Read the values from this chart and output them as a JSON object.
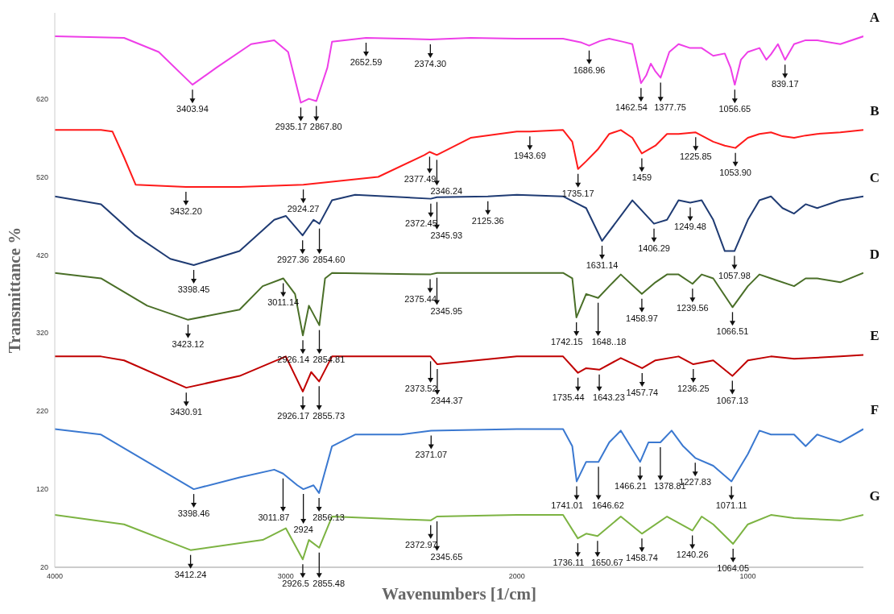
{
  "chart_data": {
    "type": "line",
    "xlabel": "Wavenumbers [1/cm]",
    "ylabel": "Transmittance %",
    "xlim": [
      4000,
      500
    ],
    "xticks": [
      4000,
      3000,
      2000,
      1000
    ],
    "ylim": [
      20,
      730
    ],
    "yticks": [
      20,
      120,
      220,
      320,
      420,
      520,
      620
    ],
    "grid": false,
    "marker": "none",
    "line_style": "solid",
    "series": [
      {
        "name": "A",
        "color": "#ee3ee8",
        "x": [
          4000,
          3700,
          3550,
          3403.94,
          3300,
          3150,
          3050,
          2990,
          2935.17,
          2900,
          2867.8,
          2820,
          2800,
          2652.59,
          2500,
          2374.3,
          2200,
          2000,
          1800,
          1720,
          1686.96,
          1640,
          1600,
          1540,
          1500,
          1462.54,
          1440,
          1420,
          1400,
          1377.75,
          1340,
          1300,
          1250,
          1200,
          1150,
          1100,
          1075,
          1056.65,
          1030,
          1000,
          950,
          920,
          900,
          870,
          839.17,
          800,
          750,
          700,
          600,
          500
        ],
        "values": [
          700,
          698,
          680,
          638,
          660,
          690,
          695,
          680,
          615,
          620,
          617,
          660,
          693,
          698,
          697,
          696,
          698,
          697,
          697,
          692,
          688,
          694,
          697,
          693,
          690,
          640,
          650,
          665,
          655,
          647,
          680,
          690,
          685,
          685,
          675,
          678,
          660,
          638,
          670,
          680,
          685,
          670,
          677,
          690,
          670,
          690,
          695,
          695,
          690,
          700
        ]
      },
      {
        "name": "B",
        "color": "#ff1a1a",
        "x": [
          4000,
          3800,
          3750,
          3700,
          3650,
          3432.2,
          3200,
          2924.27,
          2600,
          2400,
          2377.49,
          2346.24,
          2200,
          2000,
          1943.69,
          1800,
          1760,
          1735.17,
          1700,
          1650,
          1600,
          1550,
          1500,
          1459,
          1400,
          1350,
          1300,
          1225.85,
          1150,
          1100,
          1053.9,
          1000,
          950,
          900,
          850,
          800,
          750,
          700,
          600,
          500
        ],
        "values": [
          580,
          580,
          578,
          545,
          510,
          507,
          507,
          510,
          520,
          548,
          552,
          548,
          570,
          578,
          578,
          580,
          565,
          530,
          540,
          555,
          575,
          580,
          570,
          550,
          560,
          575,
          575,
          577,
          565,
          560,
          557,
          570,
          575,
          577,
          572,
          570,
          573,
          575,
          577,
          580
        ]
      },
      {
        "name": "C",
        "color": "#1f3b73",
        "x": [
          4000,
          3800,
          3650,
          3500,
          3398.45,
          3200,
          3050,
          3000,
          2927.36,
          2880,
          2854.6,
          2800,
          2700,
          2372.45,
          2345.93,
          2125.36,
          2000,
          1800,
          1700,
          1631.14,
          1550,
          1500,
          1406.29,
          1350,
          1300,
          1249.48,
          1200,
          1150,
          1100,
          1057.98,
          1000,
          950,
          900,
          850,
          800,
          750,
          700,
          600,
          500
        ],
        "values": [
          495,
          485,
          445,
          415,
          407,
          425,
          465,
          470,
          445,
          465,
          460,
          490,
          497,
          492,
          494,
          495,
          497,
          495,
          480,
          438,
          470,
          490,
          460,
          465,
          490,
          487,
          490,
          465,
          425,
          425,
          465,
          490,
          495,
          480,
          473,
          485,
          480,
          490,
          495
        ]
      },
      {
        "name": "D",
        "color": "#4a6f28",
        "x": [
          4000,
          3800,
          3600,
          3423.12,
          3200,
          3100,
          3011.14,
          2960,
          2926.14,
          2900,
          2854.81,
          2830,
          2800,
          2375.44,
          2345.95,
          2000,
          1800,
          1760,
          1742.15,
          1700,
          1648.18,
          1600,
          1550,
          1458.97,
          1400,
          1350,
          1300,
          1239.56,
          1200,
          1150,
          1066.51,
          1000,
          950,
          900,
          800,
          750,
          700,
          600,
          500
        ],
        "values": [
          397,
          390,
          355,
          337,
          350,
          380,
          390,
          370,
          317,
          355,
          330,
          390,
          397,
          395,
          397,
          397,
          397,
          390,
          340,
          370,
          365,
          380,
          395,
          370,
          385,
          395,
          395,
          383,
          395,
          390,
          353,
          380,
          395,
          390,
          380,
          390,
          390,
          385,
          397
        ]
      },
      {
        "name": "E",
        "color": "#c00000",
        "x": [
          4000,
          3800,
          3700,
          3430.91,
          3200,
          3000,
          2926.17,
          2890,
          2855.73,
          2800,
          2373.52,
          2344.37,
          2000,
          1800,
          1735.44,
          1700,
          1643.23,
          1550,
          1457.74,
          1400,
          1300,
          1236.25,
          1150,
          1067.13,
          1000,
          900,
          800,
          600,
          500
        ],
        "values": [
          290,
          290,
          285,
          250,
          265,
          290,
          245,
          270,
          258,
          290,
          290,
          280,
          290,
          290,
          269,
          275,
          273,
          288,
          275,
          285,
          290,
          280,
          285,
          265,
          285,
          290,
          287,
          290,
          292
        ]
      },
      {
        "name": "F",
        "color": "#3a78d0",
        "x": [
          4000,
          3800,
          3600,
          3398.46,
          3200,
          3050,
          3011.87,
          2950,
          2924,
          2880,
          2856.13,
          2800,
          2700,
          2500,
          2371.07,
          2000,
          1800,
          1760,
          1741.01,
          1700,
          1646.62,
          1600,
          1550,
          1466.21,
          1430,
          1378.81,
          1330,
          1280,
          1227.83,
          1150,
          1071.11,
          1000,
          950,
          900,
          800,
          750,
          700,
          600,
          500
        ],
        "values": [
          197,
          190,
          155,
          120,
          135,
          145,
          140,
          125,
          120,
          125,
          115,
          175,
          190,
          190,
          195,
          197,
          197,
          175,
          130,
          155,
          155,
          180,
          195,
          155,
          180,
          180,
          195,
          175,
          160,
          150,
          130,
          165,
          195,
          190,
          190,
          175,
          190,
          180,
          197
        ]
      },
      {
        "name": "G",
        "color": "#7cb342",
        "x": [
          4000,
          3700,
          3412.24,
          3100,
          3000,
          2926.5,
          2900,
          2855.48,
          2800,
          2372.97,
          2345.65,
          2000,
          1800,
          1736.11,
          1700,
          1650.67,
          1550,
          1458.74,
          1350,
          1240.26,
          1200,
          1150,
          1064.05,
          1000,
          900,
          800,
          600,
          500
        ],
        "values": [
          87,
          75,
          42,
          55,
          70,
          30,
          55,
          45,
          85,
          80,
          85,
          87,
          87,
          57,
          63,
          60,
          85,
          63,
          85,
          67,
          85,
          75,
          50,
          75,
          87,
          83,
          80,
          87
        ]
      }
    ],
    "annotations": [
      {
        "text": "3403.94",
        "x": 3403.94,
        "y": 638
      },
      {
        "text": "2935.17",
        "x": 2935.17,
        "y": 615
      },
      {
        "text": "2867.80",
        "x": 2867.8,
        "y": 617
      },
      {
        "text": "2652.59",
        "x": 2652.59,
        "y": 698
      },
      {
        "text": "2374.30",
        "x": 2374.3,
        "y": 696
      },
      {
        "text": "1686.96",
        "x": 1686.96,
        "y": 688
      },
      {
        "text": "1462.54",
        "x": 1462.54,
        "y": 640
      },
      {
        "text": "1377.75",
        "x": 1377.75,
        "y": 647
      },
      {
        "text": "1056.65",
        "x": 1056.65,
        "y": 638
      },
      {
        "text": "839.17",
        "x": 839.17,
        "y": 670
      },
      {
        "text": "3432.20",
        "x": 3432.2,
        "y": 507
      },
      {
        "text": "2924.27",
        "x": 2924.27,
        "y": 510
      },
      {
        "text": "2377.49",
        "x": 2377.49,
        "y": 552
      },
      {
        "text": "2346.24",
        "x": 2346.24,
        "y": 548
      },
      {
        "text": "1943.69",
        "x": 1943.69,
        "y": 578
      },
      {
        "text": "1735.17",
        "x": 1735.17,
        "y": 530
      },
      {
        "text": "1459",
        "x": 1459,
        "y": 550
      },
      {
        "text": "1225.85",
        "x": 1225.85,
        "y": 577
      },
      {
        "text": "1053.90",
        "x": 1053.9,
        "y": 557
      },
      {
        "text": "3398.45",
        "x": 3398.45,
        "y": 407
      },
      {
        "text": "2927.36",
        "x": 2927.36,
        "y": 445
      },
      {
        "text": "2854.60",
        "x": 2854.6,
        "y": 460
      },
      {
        "text": "2372.45",
        "x": 2372.45,
        "y": 492
      },
      {
        "text": "2345.93",
        "x": 2345.93,
        "y": 494
      },
      {
        "text": "2125.36",
        "x": 2125.36,
        "y": 495
      },
      {
        "text": "1631.14",
        "x": 1631.14,
        "y": 438
      },
      {
        "text": "1406.29",
        "x": 1406.29,
        "y": 460
      },
      {
        "text": "1249.48",
        "x": 1249.48,
        "y": 487
      },
      {
        "text": "1057.98",
        "x": 1057.98,
        "y": 425
      },
      {
        "text": "3011.14",
        "x": 3011.14,
        "y": 390
      },
      {
        "text": "3423.12",
        "x": 3423.12,
        "y": 337
      },
      {
        "text": "2926.14",
        "x": 2926.14,
        "y": 317
      },
      {
        "text": "2854.81",
        "x": 2854.81,
        "y": 330
      },
      {
        "text": "2375.44",
        "x": 2375.44,
        "y": 395
      },
      {
        "text": "2345.95",
        "x": 2345.95,
        "y": 397
      },
      {
        "text": "1742.15",
        "x": 1742.15,
        "y": 340
      },
      {
        "text": "1648..18",
        "x": 1648.18,
        "y": 365
      },
      {
        "text": "1458.97",
        "x": 1458.97,
        "y": 370
      },
      {
        "text": "1239.56",
        "x": 1239.56,
        "y": 383
      },
      {
        "text": "1066.51",
        "x": 1066.51,
        "y": 353
      },
      {
        "text": "3430.91",
        "x": 3430.91,
        "y": 250
      },
      {
        "text": "2926.17",
        "x": 2926.17,
        "y": 245
      },
      {
        "text": "2855.73",
        "x": 2855.73,
        "y": 258
      },
      {
        "text": "2373.52",
        "x": 2373.52,
        "y": 290
      },
      {
        "text": "2344.37",
        "x": 2344.37,
        "y": 280
      },
      {
        "text": "1735.44",
        "x": 1735.44,
        "y": 269
      },
      {
        "text": "1643.23",
        "x": 1643.23,
        "y": 273
      },
      {
        "text": "1457.74",
        "x": 1457.74,
        "y": 275
      },
      {
        "text": "1236.25",
        "x": 1236.25,
        "y": 280
      },
      {
        "text": "1067.13",
        "x": 1067.13,
        "y": 265
      },
      {
        "text": "3398.46",
        "x": 3398.46,
        "y": 120
      },
      {
        "text": "3011.87",
        "x": 3011.87,
        "y": 140
      },
      {
        "text": "2924",
        "x": 2924,
        "y": 120
      },
      {
        "text": "2856.13",
        "x": 2856.13,
        "y": 115
      },
      {
        "text": "2371.07",
        "x": 2371.07,
        "y": 195
      },
      {
        "text": "1741.01",
        "x": 1741.01,
        "y": 130
      },
      {
        "text": "1646.62",
        "x": 1646.62,
        "y": 155
      },
      {
        "text": "1466.21",
        "x": 1466.21,
        "y": 155
      },
      {
        "text": "1378.81",
        "x": 1378.81,
        "y": 180
      },
      {
        "text": "1227.83",
        "x": 1227.83,
        "y": 160
      },
      {
        "text": "1071.11",
        "x": 1071.11,
        "y": 130
      },
      {
        "text": "3412.24",
        "x": 3412.24,
        "y": 42
      },
      {
        "text": "2926.5",
        "x": 2926.5,
        "y": 30
      },
      {
        "text": "2855.48",
        "x": 2855.48,
        "y": 45
      },
      {
        "text": "2372.97",
        "x": 2372.97,
        "y": 80
      },
      {
        "text": "2345.65",
        "x": 2345.65,
        "y": 85
      },
      {
        "text": "1736.11",
        "x": 1736.11,
        "y": 57
      },
      {
        "text": "1650.67",
        "x": 1650.67,
        "y": 60
      },
      {
        "text": "1458.74",
        "x": 1458.74,
        "y": 63
      },
      {
        "text": "1240.26",
        "x": 1240.26,
        "y": 67
      },
      {
        "text": "1064.05",
        "x": 1064.05,
        "y": 50
      }
    ]
  }
}
